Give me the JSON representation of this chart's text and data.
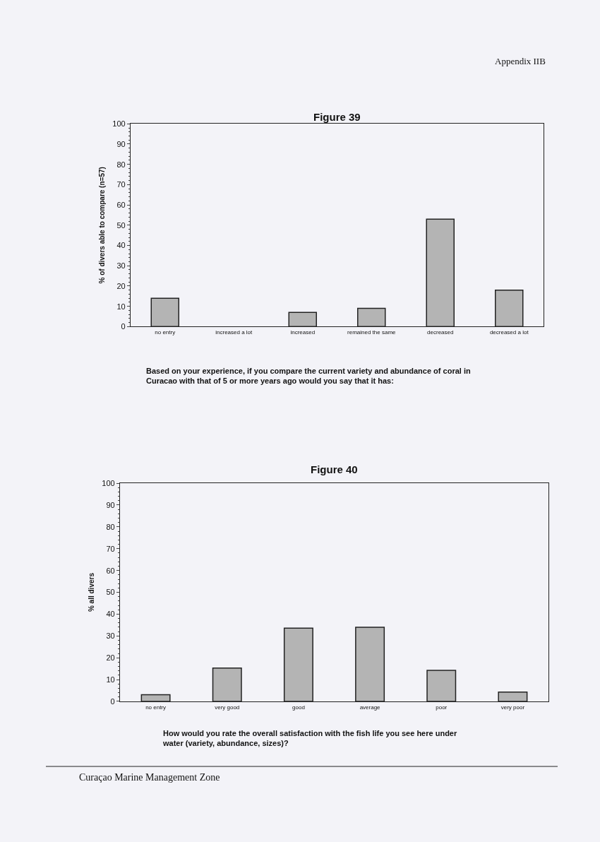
{
  "chart_data": [
    {
      "type": "bar",
      "title": "Figure 39",
      "ylabel": "% of divers able to compare (n=57)",
      "categories": [
        "no entry",
        "increased a lot",
        "increased",
        "remained the same",
        "decreased",
        "decreased a lot"
      ],
      "values": [
        14,
        0,
        7,
        9,
        53,
        18
      ],
      "color": "#b4b4b4",
      "ylim": [
        0,
        100
      ],
      "yticks": [
        0,
        10,
        20,
        30,
        40,
        50,
        60,
        70,
        80,
        90,
        100
      ],
      "grid": false,
      "annotations": [
        "Appendix IIB",
        "Based on your experience, if you compare the current variety and abundance of coral in Curacao with that of 5 or more years ago would you say that it has:"
      ]
    },
    {
      "type": "bar",
      "title": "Figure 40",
      "ylabel": "% all divers",
      "categories": [
        "no entry",
        "very good",
        "good",
        "average",
        "poor",
        "very poor"
      ],
      "values": [
        3.1,
        15.3,
        33.6,
        34,
        14.2,
        4.3
      ],
      "color": "#b4b4b4",
      "ylim": [
        0,
        100
      ],
      "yticks": [
        0,
        10,
        20,
        30,
        40,
        50,
        60,
        70,
        80,
        90,
        100
      ],
      "grid": false,
      "annotations": [
        "How would you rate the overall satisfaction with the fish life you see here under water (variety, abundance, sizes)?",
        "Curaçao Marine Management Zone"
      ]
    }
  ]
}
